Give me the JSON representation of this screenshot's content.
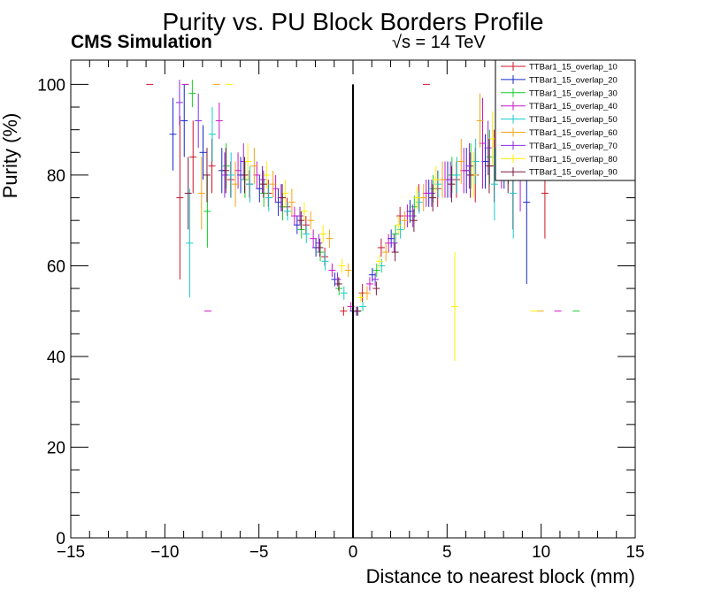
{
  "chart_data": {
    "type": "scatter",
    "title": "Purity vs. PU Block Borders Profile",
    "experiment_label": "CMS Simulation",
    "energy_label": "√s = 14 TeV",
    "xlabel": "Distance to nearest block (mm)",
    "ylabel": "Purity (%)",
    "xlim": [
      -15,
      15
    ],
    "ylim": [
      0,
      105
    ],
    "x_ticks": [
      -15,
      -10,
      -5,
      0,
      5,
      10,
      15
    ],
    "x_tick_labels": [
      "−15",
      "−10",
      "−5",
      "0",
      "5",
      "10",
      "15"
    ],
    "y_ticks": [
      0,
      20,
      40,
      60,
      80,
      100
    ],
    "y_tick_labels": [
      "0",
      "20",
      "40",
      "60",
      "80",
      "100"
    ],
    "grid": false,
    "legend_position": "top-right",
    "reference_line_x": 0,
    "series": [
      {
        "name": "TTBar1_15_overlap_10",
        "color": "#cc1428",
        "offset": 0.0,
        "points": [
          [
            -9.2,
            75,
            18
          ],
          [
            -8.5,
            84,
            8
          ],
          [
            -7.5,
            82,
            6
          ],
          [
            -6.5,
            79,
            4
          ],
          [
            -5.5,
            78,
            3
          ],
          [
            -4.5,
            76,
            3
          ],
          [
            -3.5,
            73,
            2
          ],
          [
            -2.5,
            69,
            2
          ],
          [
            -1.5,
            62,
            2
          ],
          [
            -0.5,
            50,
            1
          ],
          [
            0.5,
            54,
            2
          ],
          [
            1.5,
            64,
            2
          ],
          [
            2.5,
            71,
            2
          ],
          [
            3.5,
            75,
            3
          ],
          [
            4.5,
            77,
            4
          ],
          [
            5.5,
            79,
            4
          ],
          [
            6.5,
            80,
            6
          ],
          [
            7.5,
            82,
            8
          ],
          [
            8.5,
            80,
            12
          ],
          [
            10.2,
            76,
            10
          ],
          [
            -10.8,
            100,
            0
          ],
          [
            3.9,
            100,
            0
          ]
        ]
      },
      {
        "name": "TTBar1_15_overlap_20",
        "color": "#1428cc",
        "offset": 0.1,
        "points": [
          [
            -9.6,
            89,
            8
          ],
          [
            -9.0,
            92,
            8
          ],
          [
            -8.0,
            85,
            6
          ],
          [
            -7.0,
            81,
            5
          ],
          [
            -6.0,
            80,
            4
          ],
          [
            -5.0,
            77,
            3
          ],
          [
            -4.0,
            74,
            3
          ],
          [
            -3.0,
            69,
            2
          ],
          [
            -2.0,
            64,
            2
          ],
          [
            -1.0,
            57,
            1.5
          ],
          [
            0.0,
            50,
            1
          ],
          [
            1.0,
            58,
            1.5
          ],
          [
            2.0,
            66,
            2
          ],
          [
            3.0,
            72,
            2.5
          ],
          [
            4.0,
            76,
            3
          ],
          [
            5.0,
            79,
            4
          ],
          [
            6.0,
            81,
            5
          ],
          [
            7.0,
            83,
            6
          ],
          [
            8.0,
            85,
            8
          ],
          [
            9.2,
            74,
            18
          ]
        ]
      },
      {
        "name": "TTBar1_15_overlap_30",
        "color": "#14cc28",
        "offset": 0.2,
        "points": [
          [
            -8.6,
            98,
            3
          ],
          [
            -7.8,
            72,
            8
          ],
          [
            -6.8,
            82,
            5
          ],
          [
            -5.8,
            79,
            4
          ],
          [
            -4.8,
            76,
            3
          ],
          [
            -3.8,
            73,
            3
          ],
          [
            -2.8,
            68,
            2
          ],
          [
            -1.8,
            63,
            2
          ],
          [
            -0.8,
            55,
            1.5
          ],
          [
            0.2,
            50,
            1
          ],
          [
            1.2,
            59,
            1.5
          ],
          [
            2.2,
            67,
            2
          ],
          [
            3.2,
            73,
            2.5
          ],
          [
            4.2,
            77,
            3
          ],
          [
            5.2,
            80,
            4
          ],
          [
            6.2,
            82,
            5
          ],
          [
            7.2,
            84,
            6
          ],
          [
            8.2,
            86,
            8
          ],
          [
            11.8,
            50,
            0
          ]
        ]
      },
      {
        "name": "TTBar1_15_overlap_40",
        "color": "#cc14cc",
        "offset": 0.3,
        "points": [
          [
            -9.0,
            100,
            0
          ],
          [
            -7.2,
            92,
            4
          ],
          [
            -6.2,
            81,
            4
          ],
          [
            -5.2,
            80,
            3
          ],
          [
            -4.2,
            77,
            3
          ],
          [
            -3.2,
            71,
            2
          ],
          [
            -2.2,
            66,
            2
          ],
          [
            -1.2,
            59,
            1.5
          ],
          [
            -0.2,
            51,
            1
          ],
          [
            0.8,
            56,
            1.5
          ],
          [
            1.8,
            65,
            2
          ],
          [
            2.8,
            71,
            2.5
          ],
          [
            3.8,
            76,
            3
          ],
          [
            4.8,
            79,
            4
          ],
          [
            5.8,
            81,
            5
          ],
          [
            6.8,
            87,
            10
          ],
          [
            7.8,
            84,
            7
          ],
          [
            8.8,
            82,
            10
          ],
          [
            -7.8,
            50,
            0
          ],
          [
            10.8,
            50,
            0
          ]
        ]
      },
      {
        "name": "TTBar1_15_overlap_50",
        "color": "#14cccc",
        "offset": 0.4,
        "points": [
          [
            -8.8,
            65,
            12
          ],
          [
            -7.6,
            89,
            6
          ],
          [
            -6.6,
            80,
            5
          ],
          [
            -5.6,
            78,
            4
          ],
          [
            -4.6,
            75,
            3
          ],
          [
            -3.6,
            72,
            2
          ],
          [
            -2.6,
            67,
            2
          ],
          [
            -1.6,
            61,
            2
          ],
          [
            -0.6,
            54,
            1.5
          ],
          [
            0.4,
            51,
            1
          ],
          [
            1.4,
            60,
            1.5
          ],
          [
            2.4,
            68,
            2
          ],
          [
            3.4,
            74,
            2.5
          ],
          [
            4.4,
            78,
            3
          ],
          [
            5.4,
            80,
            4
          ],
          [
            6.4,
            83,
            5
          ],
          [
            7.4,
            78,
            8
          ],
          [
            8.4,
            76,
            10
          ]
        ]
      },
      {
        "name": "TTBar1_15_overlap_60",
        "color": "#f5a418",
        "offset": 0.5,
        "points": [
          [
            -8.2,
            76,
            8
          ],
          [
            -7.4,
            100,
            0
          ],
          [
            -6.4,
            78,
            5
          ],
          [
            -5.4,
            82,
            4
          ],
          [
            -4.4,
            78,
            3
          ],
          [
            -3.4,
            74,
            3
          ],
          [
            -2.4,
            70,
            2
          ],
          [
            -1.4,
            66,
            2
          ],
          [
            -0.4,
            59,
            1.5
          ],
          [
            0.6,
            54,
            1.5
          ],
          [
            1.6,
            63,
            2
          ],
          [
            2.6,
            70,
            2
          ],
          [
            3.6,
            75,
            3
          ],
          [
            4.6,
            79,
            4
          ],
          [
            5.6,
            83,
            5
          ],
          [
            6.6,
            92,
            6
          ],
          [
            7.6,
            90,
            7
          ],
          [
            9.8,
            50,
            0
          ]
        ]
      },
      {
        "name": "TTBar1_15_overlap_70",
        "color": "#8a2be2",
        "offset": 0.6,
        "points": [
          [
            -9.4,
            96,
            5
          ],
          [
            -8.4,
            92,
            6
          ],
          [
            -7.0,
            80,
            5
          ],
          [
            -6.0,
            83,
            4
          ],
          [
            -5.0,
            79,
            3
          ],
          [
            -4.0,
            75,
            3
          ],
          [
            -3.0,
            71,
            2
          ],
          [
            -2.0,
            65,
            2
          ],
          [
            -1.0,
            57,
            1.5
          ],
          [
            0.0,
            50,
            1
          ],
          [
            1.0,
            57,
            1.5
          ],
          [
            2.0,
            65,
            2
          ],
          [
            3.0,
            71,
            2.5
          ],
          [
            4.0,
            76,
            3
          ],
          [
            5.0,
            79,
            4
          ],
          [
            6.0,
            82,
            5
          ],
          [
            7.0,
            86,
            6
          ],
          [
            8.0,
            87,
            8
          ]
        ]
      },
      {
        "name": "TTBar1_15_overlap_80",
        "color": "#ffee00",
        "offset": 0.7,
        "points": [
          [
            -6.8,
            100,
            0
          ],
          [
            -5.8,
            83,
            4
          ],
          [
            -4.8,
            80,
            3
          ],
          [
            -3.8,
            76,
            3
          ],
          [
            -2.8,
            72,
            2
          ],
          [
            -1.8,
            67,
            2
          ],
          [
            -0.8,
            60,
            1.5
          ],
          [
            0.2,
            53,
            1
          ],
          [
            1.2,
            61,
            1.5
          ],
          [
            2.2,
            69,
            2
          ],
          [
            3.2,
            75,
            2.5
          ],
          [
            4.2,
            79,
            3
          ],
          [
            5.2,
            51,
            12
          ],
          [
            6.2,
            80,
            5
          ],
          [
            7.2,
            88,
            6
          ],
          [
            8.2,
            96,
            4
          ],
          [
            9.4,
            50,
            0
          ]
        ]
      },
      {
        "name": "TTBar1_15_overlap_90",
        "color": "#7a1a3a",
        "offset": 0.8,
        "points": [
          [
            -9.0,
            76,
            8
          ],
          [
            -8.0,
            80,
            6
          ],
          [
            -7.0,
            81,
            5
          ],
          [
            -6.0,
            80,
            4
          ],
          [
            -5.0,
            78,
            3
          ],
          [
            -4.0,
            75,
            3
          ],
          [
            -3.0,
            70,
            2
          ],
          [
            -2.0,
            64,
            2
          ],
          [
            -1.0,
            56,
            1.5
          ],
          [
            0.0,
            50,
            1
          ],
          [
            1.0,
            55,
            1.5
          ],
          [
            2.0,
            63,
            2
          ],
          [
            3.0,
            70,
            2.5
          ],
          [
            4.0,
            75,
            3
          ],
          [
            5.0,
            78,
            4
          ],
          [
            6.0,
            80,
            5
          ],
          [
            7.0,
            82,
            6
          ],
          [
            8.0,
            84,
            8
          ]
        ]
      }
    ]
  }
}
